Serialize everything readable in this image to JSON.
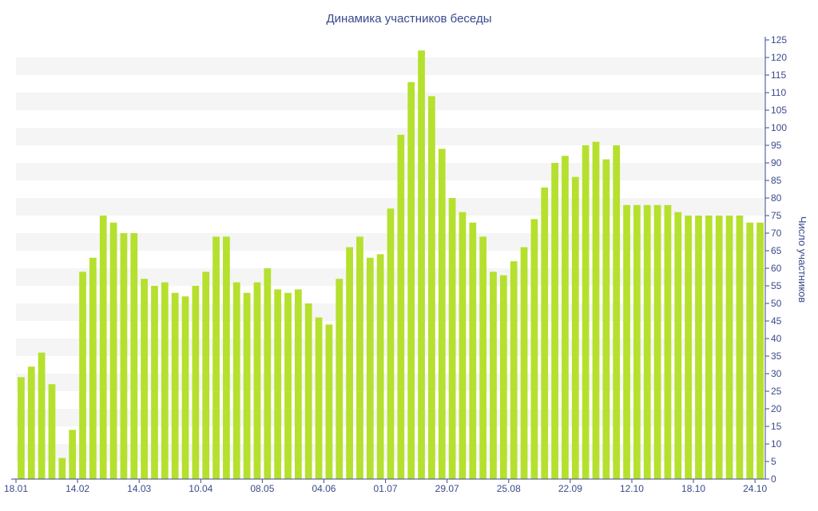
{
  "colors": {
    "bar": "#b5e02e",
    "text": "#3a4a8c",
    "axis": "#3a4a8c",
    "band": "#f5f5f5"
  },
  "chart_data": {
    "type": "bar",
    "title": "Динамика участников беседы",
    "xlabel": "",
    "ylabel": "Число участников",
    "y_axis_side": "right",
    "ylim": [
      0,
      125
    ],
    "ytick_step": 5,
    "grid": "alternating horizontal bands",
    "legend": "none",
    "x_tick_labels": [
      {
        "label": "18.01",
        "index": 0
      },
      {
        "label": "14.02",
        "index": 6
      },
      {
        "label": "14.03",
        "index": 12
      },
      {
        "label": "10.04",
        "index": 18
      },
      {
        "label": "08.05",
        "index": 24
      },
      {
        "label": "04.06",
        "index": 30
      },
      {
        "label": "01.07",
        "index": 36
      },
      {
        "label": "29.07",
        "index": 42
      },
      {
        "label": "25.08",
        "index": 48
      },
      {
        "label": "22.09",
        "index": 54
      },
      {
        "label": "12.10",
        "index": 60
      },
      {
        "label": "18.10",
        "index": 66
      },
      {
        "label": "24.10",
        "index": 72
      }
    ],
    "values": [
      29,
      32,
      36,
      27,
      6,
      14,
      59,
      63,
      75,
      73,
      70,
      70,
      57,
      55,
      56,
      53,
      52,
      55,
      59,
      69,
      69,
      56,
      53,
      56,
      60,
      54,
      53,
      54,
      50,
      46,
      44,
      57,
      66,
      69,
      63,
      64,
      77,
      98,
      113,
      122,
      109,
      94,
      80,
      76,
      73,
      69,
      59,
      58,
      62,
      66,
      74,
      83,
      90,
      92,
      86,
      95,
      96,
      91,
      95,
      78,
      78,
      78,
      78,
      78,
      76,
      75,
      75,
      75,
      75,
      75,
      75,
      73,
      73
    ]
  }
}
